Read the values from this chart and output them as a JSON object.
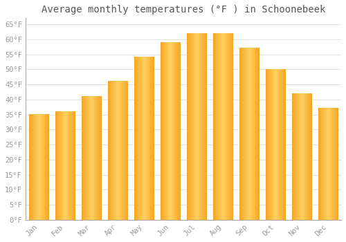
{
  "title": "Average monthly temperatures (°F ) in Schoonebeek",
  "months": [
    "Jan",
    "Feb",
    "Mar",
    "Apr",
    "May",
    "Jun",
    "Jul",
    "Aug",
    "Sep",
    "Oct",
    "Nov",
    "Dec"
  ],
  "values": [
    35,
    36,
    41,
    46,
    54,
    59,
    62,
    62,
    57,
    50,
    42,
    37
  ],
  "bar_color_left": "#F5A623",
  "bar_color_center": "#FFD060",
  "bar_color_right": "#F5A623",
  "background_color": "#FFFFFF",
  "grid_color": "#DDDDDD",
  "ytick_labels": [
    "0°F",
    "5°F",
    "10°F",
    "15°F",
    "20°F",
    "25°F",
    "30°F",
    "35°F",
    "40°F",
    "45°F",
    "50°F",
    "55°F",
    "60°F",
    "65°F"
  ],
  "ytick_values": [
    0,
    5,
    10,
    15,
    20,
    25,
    30,
    35,
    40,
    45,
    50,
    55,
    60,
    65
  ],
  "ylim": [
    0,
    67
  ],
  "title_fontsize": 10,
  "tick_fontsize": 7.5,
  "tick_color": "#999999",
  "spine_color": "#AAAAAA",
  "font_family": "monospace"
}
